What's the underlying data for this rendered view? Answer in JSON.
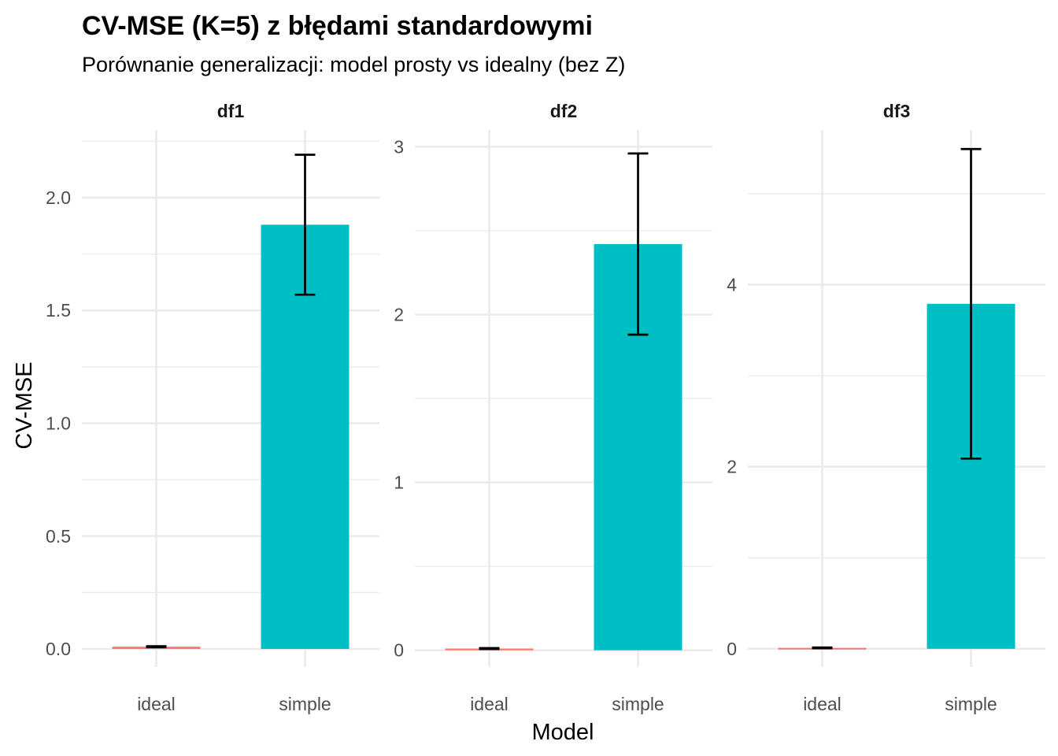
{
  "chart_data": {
    "type": "bar",
    "title": "CV-MSE (K=5) z błędami standardowymi",
    "subtitle": "Porównanie generalizacji: model prosty vs idealny (bez Z)",
    "xlabel": "Model",
    "ylabel": "CV-MSE",
    "categories": [
      "ideal",
      "simple"
    ],
    "colors": {
      "ideal": "#F8766D",
      "simple": "#00BFC4"
    },
    "grid": true,
    "legend": "none",
    "panels": [
      {
        "name": "df1",
        "ylim": [
          -0.08,
          2.3
        ],
        "yticks": [
          0.0,
          0.5,
          1.0,
          1.5,
          2.0
        ],
        "ytick_labels": [
          "0.0",
          "0.5",
          "1.0",
          "1.5",
          "2.0"
        ],
        "values": [
          0.01,
          1.88
        ],
        "se": [
          0.002,
          0.31
        ]
      },
      {
        "name": "df2",
        "ylim": [
          -0.1,
          3.1
        ],
        "yticks": [
          0,
          1,
          2,
          3
        ],
        "ytick_labels": [
          "0",
          "1",
          "2",
          "3"
        ],
        "values": [
          0.01,
          2.42
        ],
        "se": [
          0.003,
          0.54
        ]
      },
      {
        "name": "df3",
        "ylim": [
          -0.2,
          5.7
        ],
        "yticks": [
          0,
          2,
          4
        ],
        "ytick_labels": [
          "0",
          "2",
          "4"
        ],
        "values": [
          0.01,
          3.79
        ],
        "se": [
          0.004,
          1.7
        ]
      }
    ]
  }
}
